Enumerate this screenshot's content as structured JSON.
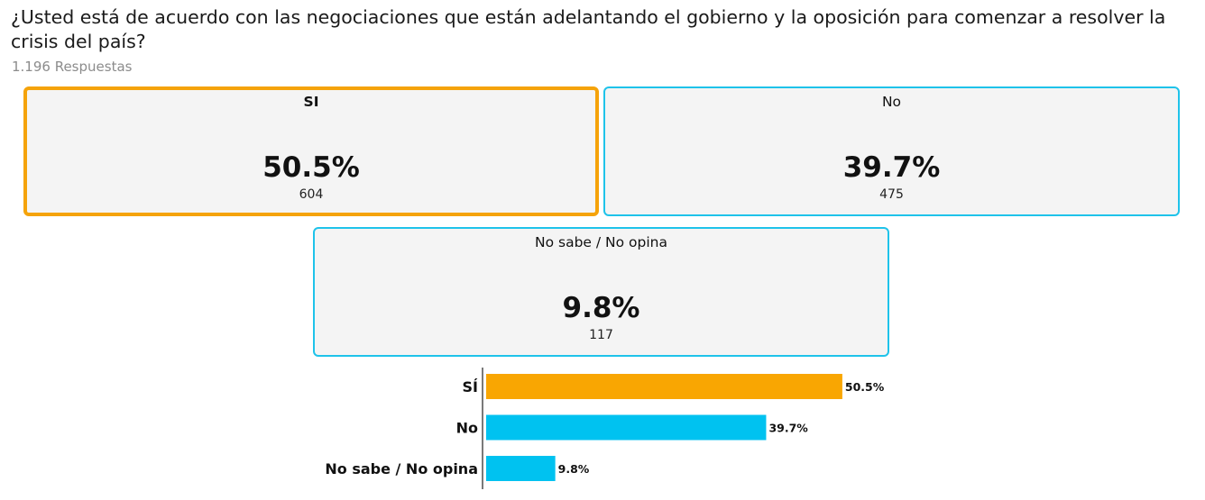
{
  "question": "¿Usted está de acuerdo con las negociaciones que están adelantando el gobierno y la oposición para comenzar a resolver la crisis del país?",
  "responses_text": "1.196 Respuestas",
  "colors": {
    "selected": "#f5a30a",
    "accent": "#1fc3ea",
    "card_bg": "#f4f4f4"
  },
  "options": [
    {
      "label": "SI",
      "percent": "50.5%",
      "count": "604",
      "selected": true
    },
    {
      "label": "No",
      "percent": "39.7%",
      "count": "475",
      "selected": false
    },
    {
      "label": "No sabe / No opina",
      "percent": "9.8%",
      "count": "117",
      "selected": false
    }
  ],
  "chart_data": {
    "type": "bar",
    "orientation": "horizontal",
    "categories": [
      "SÍ",
      "No",
      "No sabe / No opina"
    ],
    "values": [
      50.5,
      39.7,
      9.8
    ],
    "value_labels": [
      "50.5%",
      "39.7%",
      "9.8%"
    ],
    "colors": [
      "#f9a602",
      "#00c2f0",
      "#00c2f0"
    ],
    "xlim": [
      0,
      100
    ],
    "title": "",
    "xlabel": "",
    "ylabel": "",
    "grid": false,
    "legend": "none"
  }
}
